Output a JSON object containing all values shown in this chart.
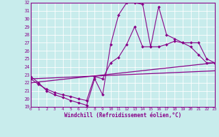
{
  "xlabel": "Windchill (Refroidissement éolien,°C)",
  "xlim": [
    0,
    23
  ],
  "ylim": [
    19,
    32
  ],
  "xticks": [
    0,
    1,
    2,
    3,
    4,
    5,
    6,
    7,
    8,
    9,
    10,
    11,
    12,
    13,
    14,
    15,
    16,
    17,
    18,
    19,
    20,
    21,
    22,
    23
  ],
  "yticks": [
    19,
    20,
    21,
    22,
    23,
    24,
    25,
    26,
    27,
    28,
    29,
    30,
    31,
    32
  ],
  "bg_color": "#c8ecec",
  "line_color": "#880088",
  "grid_color": "#b0d8d8",
  "lines": [
    {
      "x": [
        0,
        1,
        2,
        3,
        4,
        5,
        6,
        7,
        8,
        9,
        10,
        11,
        12,
        13,
        14,
        15,
        16,
        17,
        18,
        19,
        20,
        21,
        22,
        23
      ],
      "y": [
        22.8,
        22.0,
        21.0,
        20.5,
        20.2,
        19.8,
        19.5,
        19.2,
        22.5,
        20.5,
        26.8,
        30.5,
        32.0,
        32.0,
        31.8,
        26.5,
        31.5,
        28.0,
        27.5,
        27.0,
        26.5,
        25.5,
        24.5,
        24.5
      ],
      "marker": true
    },
    {
      "x": [
        0,
        1,
        2,
        3,
        4,
        5,
        6,
        7,
        8,
        9,
        10,
        11,
        12,
        13,
        14,
        15,
        16,
        17,
        18,
        19,
        20,
        21,
        22,
        23
      ],
      "y": [
        22.5,
        21.8,
        21.2,
        20.8,
        20.5,
        20.3,
        20.0,
        19.8,
        22.8,
        22.5,
        24.5,
        25.2,
        26.8,
        29.0,
        26.5,
        26.5,
        26.5,
        26.8,
        27.2,
        27.0,
        27.0,
        27.0,
        25.0,
        24.5
      ],
      "marker": true
    },
    {
      "x": [
        0,
        23
      ],
      "y": [
        22.0,
        24.5
      ],
      "marker": false
    },
    {
      "x": [
        0,
        23
      ],
      "y": [
        22.5,
        23.5
      ],
      "marker": false
    }
  ]
}
